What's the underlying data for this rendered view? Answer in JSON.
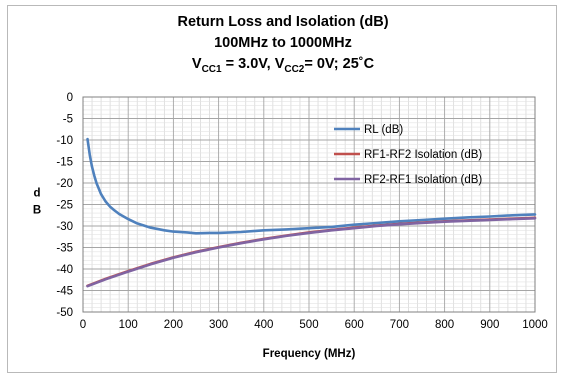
{
  "chart_data": {
    "type": "line",
    "title_line1": "Return Loss and Isolation (dB)",
    "title_line2": "100MHz to 1000MHz",
    "title_line3": {
      "v1": "V",
      "sub1": "CC1",
      "mid": " = 3.0V, ",
      "v2": "V",
      "sub2": "CC2",
      "end": "= 0V; 25˚C"
    },
    "xlabel": "Frequency (MHz)",
    "ylabel": "dB",
    "xlim": [
      0,
      1000
    ],
    "ylim": [
      -50,
      0
    ],
    "xticks": [
      0,
      100,
      200,
      300,
      400,
      500,
      600,
      700,
      800,
      900,
      1000
    ],
    "yticks": [
      0,
      -5,
      -10,
      -15,
      -20,
      -25,
      -30,
      -35,
      -40,
      -45,
      -50
    ],
    "grid": true,
    "legend_position": "right",
    "series": [
      {
        "name": "RL (dB)",
        "color": "#4f81bd",
        "x": [
          10,
          15,
          20,
          25,
          30,
          40,
          50,
          60,
          70,
          80,
          100,
          120,
          150,
          180,
          200,
          230,
          250,
          280,
          300,
          350,
          400,
          450,
          500,
          550,
          600,
          650,
          700,
          750,
          800,
          850,
          900,
          950,
          1000
        ],
        "y": [
          -9.8,
          -13.5,
          -16.2,
          -18.3,
          -20.1,
          -22.6,
          -24.3,
          -25.5,
          -26.4,
          -27.2,
          -28.4,
          -29.4,
          -30.4,
          -31.0,
          -31.3,
          -31.5,
          -31.7,
          -31.6,
          -31.6,
          -31.4,
          -31.0,
          -30.8,
          -30.5,
          -30.2,
          -29.7,
          -29.3,
          -28.9,
          -28.6,
          -28.3,
          -28.0,
          -27.8,
          -27.5,
          -27.3
        ]
      },
      {
        "name": "RF1-RF2 Isolation (dB)",
        "color": "#c0504d",
        "x": [
          10,
          50,
          100,
          150,
          200,
          250,
          300,
          350,
          400,
          450,
          500,
          550,
          600,
          650,
          700,
          750,
          800,
          850,
          900,
          950,
          1000
        ],
        "y": [
          -43.9,
          -42.3,
          -40.5,
          -38.8,
          -37.3,
          -36.0,
          -34.9,
          -33.9,
          -33.0,
          -32.2,
          -31.5,
          -30.9,
          -30.4,
          -29.9,
          -29.5,
          -29.2,
          -28.9,
          -28.7,
          -28.5,
          -28.3,
          -28.1
        ]
      },
      {
        "name": "RF2-RF1 Isolation (dB)",
        "color": "#8064a2",
        "x": [
          10,
          50,
          100,
          150,
          200,
          250,
          300,
          350,
          400,
          450,
          500,
          550,
          600,
          650,
          700,
          750,
          800,
          850,
          900,
          950,
          1000
        ],
        "y": [
          -44.0,
          -42.4,
          -40.6,
          -38.9,
          -37.4,
          -36.1,
          -35.0,
          -34.0,
          -33.1,
          -32.3,
          -31.6,
          -31.0,
          -30.5,
          -30.0,
          -29.6,
          -29.3,
          -29.0,
          -28.8,
          -28.6,
          -28.4,
          -28.2
        ]
      }
    ]
  }
}
